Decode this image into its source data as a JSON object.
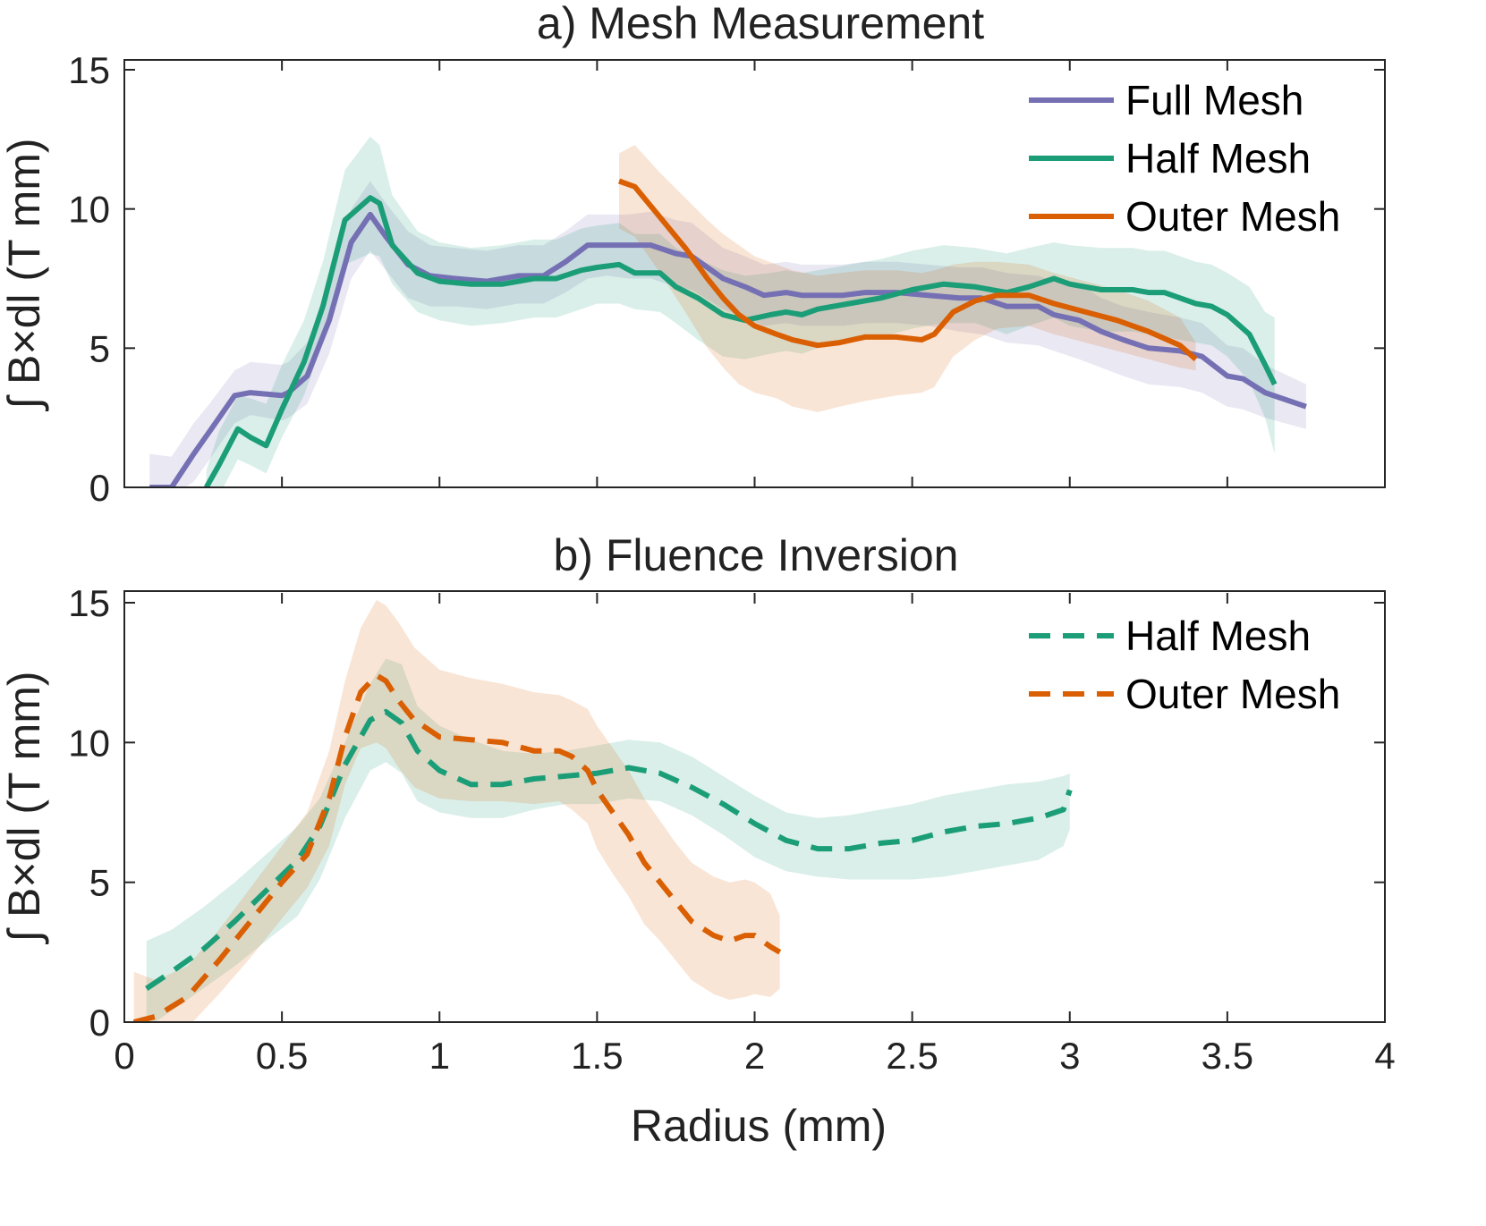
{
  "x_axis_label": "Radius (mm)",
  "y_axis_label": "∫ B×dl (T mm)",
  "chart_data": [
    {
      "type": "line",
      "title": "a) Mesh Measurement",
      "xlabel": "",
      "ylabel": "∫ B×dl (T mm)",
      "xlim": [
        0,
        4
      ],
      "ylim": [
        0,
        15
      ],
      "xticks": [
        0,
        0.5,
        1,
        1.5,
        2,
        2.5,
        3,
        3.5,
        4
      ],
      "xtick_labels": [],
      "yticks": [
        0,
        5,
        10,
        15
      ],
      "ytick_labels": [
        "0",
        "5",
        "10",
        "15"
      ],
      "legend_position": "top-right",
      "series": [
        {
          "name": "Full Mesh",
          "color": "#7570b3",
          "dash": "solid",
          "x": [
            0.08,
            0.15,
            0.22,
            0.27,
            0.35,
            0.4,
            0.5,
            0.52,
            0.58,
            0.65,
            0.72,
            0.78,
            0.83,
            0.9,
            0.97,
            1.05,
            1.15,
            1.25,
            1.33,
            1.4,
            1.47,
            1.53,
            1.6,
            1.67,
            1.75,
            1.8,
            1.9,
            1.97,
            2.03,
            2.1,
            2.15,
            2.2,
            2.28,
            2.35,
            2.45,
            2.55,
            2.65,
            2.72,
            2.8,
            2.9,
            2.95,
            3.03,
            3.1,
            3.17,
            3.25,
            3.35,
            3.42,
            3.5,
            3.55,
            3.62,
            3.75
          ],
          "y": [
            0,
            0,
            1.2,
            2,
            3.3,
            3.4,
            3.3,
            3.4,
            4,
            6,
            8.8,
            9.8,
            9,
            8,
            7.6,
            7.5,
            7.4,
            7.6,
            7.6,
            8.1,
            8.7,
            8.7,
            8.7,
            8.7,
            8.4,
            8.3,
            7.5,
            7.2,
            6.9,
            7,
            6.9,
            6.9,
            6.9,
            7,
            7,
            6.9,
            6.8,
            6.8,
            6.5,
            6.5,
            6.2,
            6,
            5.6,
            5.3,
            5,
            4.9,
            4.7,
            4,
            3.9,
            3.4,
            2.9
          ],
          "band_lower": [
            -0.3,
            -0.3,
            0.2,
            1,
            2.3,
            2.6,
            2.4,
            2.5,
            3,
            4.8,
            7.5,
            8.5,
            7.8,
            6.8,
            6.5,
            6.5,
            6.4,
            6.6,
            6.6,
            7,
            7.5,
            7.6,
            7.5,
            7.5,
            7.2,
            7.1,
            6.4,
            6.1,
            5.8,
            5.9,
            5.8,
            5.8,
            5.8,
            5.9,
            5.9,
            5.8,
            5.6,
            5.5,
            5.2,
            5.1,
            4.9,
            4.6,
            4.3,
            4,
            3.7,
            3.6,
            3.4,
            2.9,
            2.8,
            2.5,
            2.1
          ],
          "band_upper": [
            1.2,
            1.1,
            2.3,
            3,
            4.2,
            4.5,
            4.4,
            4.5,
            5.2,
            7.2,
            10,
            11,
            10.2,
            9.2,
            8.7,
            8.6,
            8.5,
            8.7,
            8.7,
            9.2,
            9.8,
            9.8,
            9.8,
            9.9,
            9.6,
            9.5,
            8.6,
            8.3,
            8,
            8.1,
            8,
            8,
            8,
            8.1,
            8.1,
            8,
            7.9,
            7.9,
            7.7,
            7.6,
            7.4,
            7.3,
            6.8,
            6.5,
            6.3,
            6.1,
            5.9,
            5.1,
            5,
            4.4,
            3.7
          ]
        },
        {
          "name": "Half Mesh",
          "color": "#1b9e77",
          "dash": "solid",
          "x": [
            0.26,
            0.3,
            0.36,
            0.4,
            0.45,
            0.5,
            0.57,
            0.63,
            0.7,
            0.78,
            0.81,
            0.85,
            0.93,
            1,
            1.1,
            1.2,
            1.3,
            1.37,
            1.45,
            1.5,
            1.57,
            1.62,
            1.7,
            1.75,
            1.82,
            1.9,
            1.97,
            2.05,
            2.1,
            2.15,
            2.2,
            2.3,
            2.4,
            2.5,
            2.6,
            2.7,
            2.8,
            2.87,
            2.95,
            3,
            3.1,
            3.2,
            3.25,
            3.3,
            3.4,
            3.45,
            3.5,
            3.57,
            3.62,
            3.65
          ],
          "y": [
            0,
            0.8,
            2.1,
            1.8,
            1.5,
            2.8,
            4.5,
            6.5,
            9.6,
            10.4,
            10.2,
            8.7,
            7.7,
            7.4,
            7.3,
            7.3,
            7.5,
            7.5,
            7.8,
            7.9,
            8,
            7.7,
            7.7,
            7.2,
            6.8,
            6.2,
            6,
            6.2,
            6.3,
            6.2,
            6.4,
            6.6,
            6.8,
            7.1,
            7.3,
            7.2,
            7,
            7.2,
            7.5,
            7.3,
            7.1,
            7.1,
            7,
            7,
            6.6,
            6.5,
            6.2,
            5.5,
            4.4,
            3.7
          ],
          "band_lower": [
            -0.6,
            -0.3,
            1,
            0.8,
            0.5,
            1.8,
            3.3,
            5.2,
            8,
            8.4,
            8.3,
            7.3,
            6.3,
            6,
            5.8,
            5.9,
            6.1,
            6.1,
            6.4,
            6.6,
            6.6,
            6.4,
            6.3,
            5.9,
            5.3,
            4.7,
            4.6,
            4.8,
            4.9,
            4.8,
            5,
            5.3,
            5.4,
            5.7,
            5.9,
            5.9,
            5.5,
            5.8,
            6.1,
            5.8,
            5.6,
            5.6,
            5.5,
            5.4,
            5.2,
            5.1,
            4.7,
            3.8,
            2.5,
            1.2
          ],
          "band_upper": [
            0.6,
            2,
            3.3,
            3.2,
            3,
            4.4,
            6,
            8.1,
            11.4,
            12.6,
            12.3,
            10.5,
            9.2,
            8.8,
            8.6,
            8.7,
            8.9,
            8.9,
            9.3,
            9.4,
            9.5,
            9.1,
            9.1,
            8.6,
            8.2,
            7.8,
            7.6,
            7.7,
            7.8,
            7.7,
            7.8,
            8,
            8.2,
            8.5,
            8.7,
            8.6,
            8.4,
            8.6,
            8.8,
            8.7,
            8.6,
            8.6,
            8.5,
            8.5,
            8.1,
            8,
            7.7,
            7.2,
            6.3,
            6.1
          ]
        },
        {
          "name": "Outer Mesh",
          "color": "#d95f02",
          "dash": "solid",
          "x": [
            1.57,
            1.62,
            1.7,
            1.78,
            1.85,
            1.9,
            1.95,
            2,
            2.07,
            2.12,
            2.2,
            2.27,
            2.35,
            2.45,
            2.53,
            2.57,
            2.63,
            2.7,
            2.77,
            2.87,
            2.95,
            3.05,
            3.15,
            3.25,
            3.35,
            3.4
          ],
          "y": [
            11,
            10.8,
            9.7,
            8.6,
            7.5,
            6.8,
            6.2,
            5.8,
            5.5,
            5.3,
            5.1,
            5.2,
            5.4,
            5.4,
            5.3,
            5.5,
            6.3,
            6.7,
            6.9,
            6.9,
            6.6,
            6.3,
            6,
            5.6,
            5.1,
            4.6
          ],
          "band_lower": [
            9.3,
            9,
            7.7,
            6.3,
            5,
            4.3,
            3.7,
            3.4,
            3.2,
            2.9,
            2.7,
            2.9,
            3.1,
            3.3,
            3.4,
            3.6,
            4.7,
            5.3,
            5.7,
            5.8,
            5.5,
            5.2,
            4.9,
            4.6,
            4.3,
            4.2
          ],
          "band_upper": [
            12,
            12.3,
            11.3,
            10.4,
            9.6,
            9.1,
            8.7,
            8.3,
            8,
            7.8,
            7.6,
            7.7,
            7.8,
            7.8,
            7.7,
            7.8,
            8,
            8.1,
            8.1,
            8,
            7.7,
            7.4,
            7.1,
            6.7,
            6.1,
            5.2
          ]
        }
      ]
    },
    {
      "type": "line",
      "title": "b) Fluence Inversion",
      "xlabel": "Radius (mm)",
      "ylabel": "∫ B×dl (T mm)",
      "xlim": [
        0,
        4
      ],
      "ylim": [
        0,
        15
      ],
      "xticks": [
        0,
        0.5,
        1,
        1.5,
        2,
        2.5,
        3,
        3.5,
        4
      ],
      "xtick_labels": [
        "0",
        "0.5",
        "1",
        "1.5",
        "2",
        "2.5",
        "3",
        "3.5",
        "4"
      ],
      "yticks": [
        0,
        5,
        10,
        15
      ],
      "ytick_labels": [
        "0",
        "5",
        "10",
        "15"
      ],
      "legend_position": "top-right",
      "series": [
        {
          "name": "Half Mesh",
          "color": "#1b9e77",
          "dash": "dashed",
          "x": [
            0.07,
            0.15,
            0.25,
            0.35,
            0.45,
            0.55,
            0.62,
            0.7,
            0.78,
            0.83,
            0.88,
            0.93,
            1,
            1.1,
            1.2,
            1.3,
            1.4,
            1.5,
            1.6,
            1.7,
            1.8,
            1.9,
            2,
            2.1,
            2.2,
            2.3,
            2.4,
            2.5,
            2.6,
            2.7,
            2.8,
            2.9,
            2.98,
            3
          ],
          "y": [
            1.2,
            1.8,
            2.6,
            3.6,
            4.7,
            5.8,
            7,
            9.2,
            10.8,
            11.1,
            10.7,
            9.7,
            9,
            8.5,
            8.5,
            8.7,
            8.8,
            8.9,
            9.1,
            8.9,
            8.4,
            7.8,
            7.1,
            6.5,
            6.2,
            6.2,
            6.4,
            6.5,
            6.8,
            7,
            7.1,
            7.3,
            7.6,
            8.3
          ],
          "band_lower": [
            -0.2,
            0.4,
            1.2,
            2,
            2.9,
            3.8,
            5.1,
            7.3,
            9,
            9.3,
            8.9,
            7.9,
            7.5,
            7.3,
            7.3,
            7.6,
            7.8,
            7.8,
            8,
            7.9,
            7.4,
            6.7,
            5.9,
            5.4,
            5.2,
            5.1,
            5.1,
            5.1,
            5.2,
            5.4,
            5.6,
            5.8,
            6.3,
            6.9
          ],
          "band_upper": [
            2.9,
            3.3,
            4.1,
            5,
            6,
            7,
            8,
            10,
            12.1,
            13,
            12.8,
            11.3,
            10.6,
            10.1,
            9.7,
            9.6,
            9.7,
            9.9,
            10.1,
            10,
            9.5,
            8.8,
            8.1,
            7.5,
            7.3,
            7.4,
            7.6,
            7.8,
            8.1,
            8.3,
            8.5,
            8.6,
            8.8,
            8.9
          ]
        },
        {
          "name": "Outer Mesh",
          "color": "#d95f02",
          "dash": "dashed",
          "x": [
            0.03,
            0.1,
            0.2,
            0.3,
            0.4,
            0.5,
            0.58,
            0.65,
            0.7,
            0.75,
            0.8,
            0.83,
            0.87,
            0.92,
            1,
            1.1,
            1.2,
            1.3,
            1.38,
            1.42,
            1.47,
            1.5,
            1.55,
            1.6,
            1.65,
            1.7,
            1.75,
            1.8,
            1.87,
            1.92,
            1.97,
            2,
            2.05,
            2.08
          ],
          "y": [
            0,
            0.2,
            0.9,
            2.2,
            3.6,
            5,
            6,
            8,
            10.2,
            11.8,
            12.4,
            12.2,
            11.5,
            10.8,
            10.2,
            10.1,
            10,
            9.7,
            9.7,
            9.5,
            9,
            8.3,
            7.5,
            6.7,
            5.7,
            5,
            4.3,
            3.6,
            3.1,
            2.9,
            3.1,
            3.1,
            2.7,
            2.5
          ],
          "band_lower": [
            -1,
            -0.9,
            -0.2,
            1,
            2.3,
            3.7,
            4.8,
            6.3,
            8.5,
            9.8,
            10,
            9.8,
            9.1,
            8.4,
            8,
            7.9,
            7.9,
            7.8,
            7.9,
            7.6,
            7.1,
            6.2,
            5.3,
            4.5,
            3.5,
            2.9,
            2.2,
            1.5,
            1,
            0.8,
            0.9,
            1,
            0.9,
            1.2
          ],
          "band_upper": [
            1.8,
            1.5,
            2,
            3.3,
            4.8,
            6.3,
            7.5,
            9.7,
            12.2,
            14.1,
            15.1,
            14.9,
            14.3,
            13.4,
            12.6,
            12.3,
            12.1,
            11.8,
            11.7,
            11.5,
            11.2,
            10.6,
            9.8,
            9,
            8,
            7.2,
            6.4,
            5.7,
            5.2,
            5,
            5.1,
            5,
            4.6,
            3.8
          ]
        }
      ]
    }
  ]
}
